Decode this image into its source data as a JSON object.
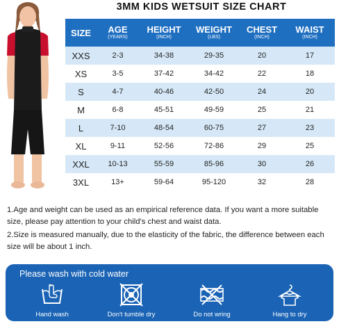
{
  "title": "3MM KIDS WETSUIT SIZE CHART",
  "headers": [
    {
      "label": "SIZE",
      "unit": ""
    },
    {
      "label": "AGE",
      "unit": "(YEARS)"
    },
    {
      "label": "HEIGHT",
      "unit": "(INCH)"
    },
    {
      "label": "WEIGHT",
      "unit": "(LBS)"
    },
    {
      "label": "CHEST",
      "unit": "(INCH)"
    },
    {
      "label": "WAIST",
      "unit": "(INCH)"
    }
  ],
  "rows": [
    [
      "XXS",
      "2-3",
      "34-38",
      "29-35",
      "20",
      "17"
    ],
    [
      "XS",
      "3-5",
      "37-42",
      "34-42",
      "22",
      "18"
    ],
    [
      "S",
      "4-7",
      "40-46",
      "42-50",
      "24",
      "20"
    ],
    [
      "M",
      "6-8",
      "45-51",
      "49-59",
      "25",
      "21"
    ],
    [
      "L",
      "7-10",
      "48-54",
      "60-75",
      "27",
      "23"
    ],
    [
      "XL",
      "9-11",
      "52-56",
      "72-86",
      "29",
      "25"
    ],
    [
      "XXL",
      "10-13",
      "55-59",
      "85-96",
      "30",
      "26"
    ],
    [
      "3XL",
      "13+",
      "59-64",
      "95-120",
      "32",
      "28"
    ]
  ],
  "notes": [
    "1.Age and weight can be used as an empirical reference data. If you want a more suitable size, please pay attention to your child's chest and waist data.",
    "2.Size is measured manually, due to the elasticity of the fabric, the difference between each size will be about 1 inch."
  ],
  "care": {
    "title": "Please wash with cold water",
    "items": [
      {
        "label": "Hand wash",
        "icon": "hand-wash-icon"
      },
      {
        "label": "Don't tumble dry",
        "icon": "no-tumble-dry-icon"
      },
      {
        "label": "Do not wring",
        "icon": "no-wring-icon"
      },
      {
        "label": "Hang to dry",
        "icon": "hang-dry-icon"
      }
    ]
  },
  "colors": {
    "header": "#1f6fc1",
    "band": "#d6e8f7",
    "care_bg": "#1a63b5",
    "suit_accent": "#c8102e"
  }
}
